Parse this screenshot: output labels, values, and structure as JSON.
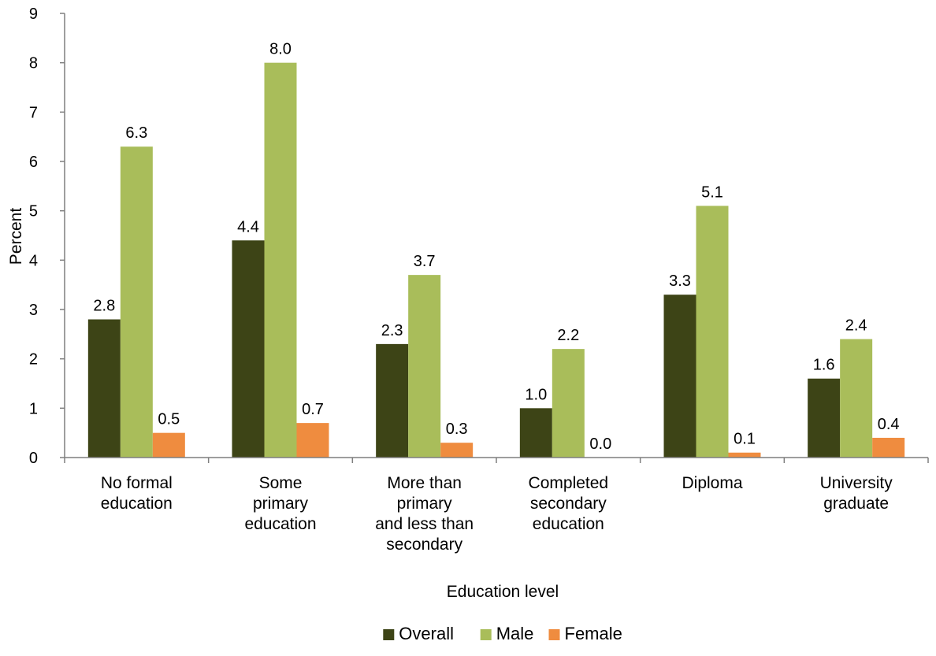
{
  "chart_data": {
    "type": "bar",
    "title": "",
    "xlabel": "Education level",
    "ylabel": "Percent",
    "ylim": [
      0,
      9
    ],
    "yticks": [
      0,
      1,
      2,
      3,
      4,
      5,
      6,
      7,
      8,
      9
    ],
    "grid": false,
    "legend_position": "bottom",
    "categories": [
      [
        "No formal",
        "education"
      ],
      [
        "Some",
        "primary",
        "education"
      ],
      [
        "More than",
        "primary",
        "and less than",
        "secondary"
      ],
      [
        "Completed",
        "secondary",
        "education"
      ],
      [
        "Diploma"
      ],
      [
        "University",
        "graduate"
      ]
    ],
    "series": [
      {
        "name": "Overall",
        "color": "#3d4416",
        "values": [
          2.8,
          4.4,
          2.3,
          1.0,
          3.3,
          1.6
        ],
        "labels": [
          "2.8",
          "4.4",
          "2.3",
          "1.0",
          "3.3",
          "1.6"
        ]
      },
      {
        "name": "Male",
        "color": "#a9bd5a",
        "values": [
          6.3,
          8.0,
          3.7,
          2.2,
          5.1,
          2.4
        ],
        "labels": [
          "6.3",
          "8.0",
          "3.7",
          "2.2",
          "5.1",
          "2.4"
        ]
      },
      {
        "name": "Female",
        "color": "#ef8c3f",
        "values": [
          0.5,
          0.7,
          0.3,
          0.0,
          0.1,
          0.4
        ],
        "labels": [
          "0.5",
          "0.7",
          "0.3",
          "0.0",
          "0.1",
          "0.4"
        ]
      }
    ]
  }
}
